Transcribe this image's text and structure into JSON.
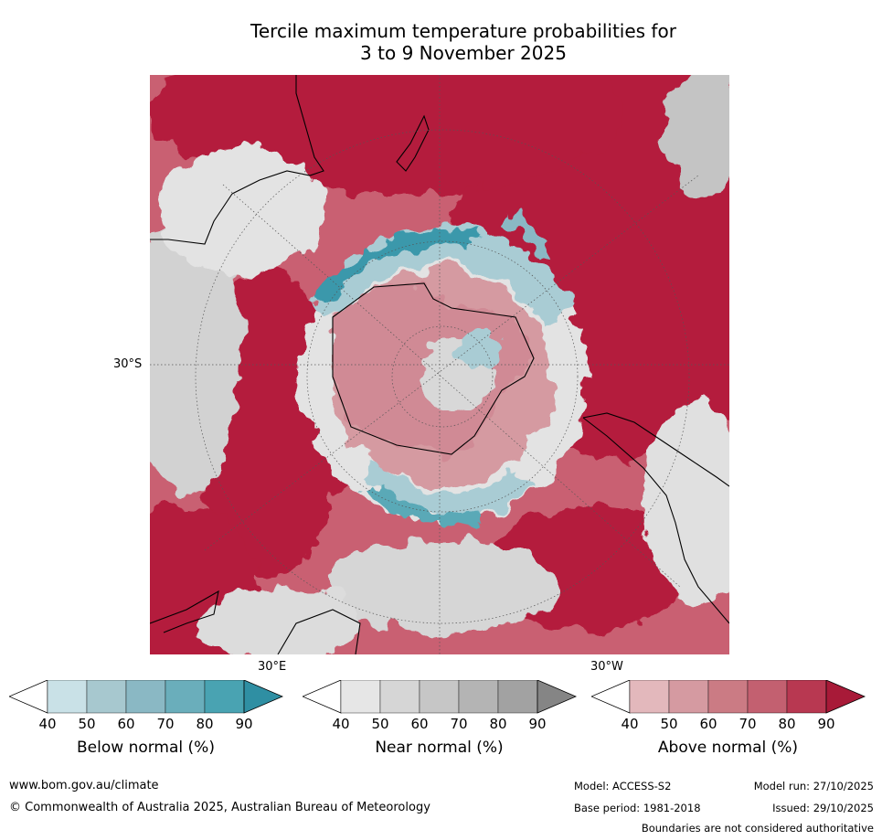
{
  "title": {
    "line1": "Tercile maximum temperature probabilities for",
    "line2": "3 to 9 November 2025"
  },
  "map": {
    "projection": "south-polar-stereographic",
    "lat_label": "30°S",
    "lon_labels": [
      "30°E",
      "30°W"
    ],
    "legend_icon": "south-pole-map"
  },
  "colorbars": [
    {
      "name": "below-normal",
      "label": "Below normal (%)",
      "ticks": [
        "40",
        "50",
        "60",
        "70",
        "80",
        "90"
      ],
      "under_color": "#ffffff",
      "colors": [
        "#c9e1e7",
        "#a7c8cf",
        "#8ab8c4",
        "#6aaebb",
        "#49a3b2"
      ],
      "over_color": "#2f8fa3"
    },
    {
      "name": "near-normal",
      "label": "Near normal (%)",
      "ticks": [
        "40",
        "50",
        "60",
        "70",
        "80",
        "90"
      ],
      "under_color": "#ffffff",
      "colors": [
        "#e6e6e6",
        "#d6d6d6",
        "#c6c6c6",
        "#b4b4b4",
        "#a2a2a2"
      ],
      "over_color": "#858585"
    },
    {
      "name": "above-normal",
      "label": "Above normal (%)",
      "ticks": [
        "40",
        "50",
        "60",
        "70",
        "80",
        "90"
      ],
      "under_color": "#ffffff",
      "colors": [
        "#e3b8bc",
        "#d59aa1",
        "#cb7b84",
        "#c36070",
        "#b83851"
      ],
      "over_color": "#a81a38"
    }
  ],
  "footer": {
    "url": "www.bom.gov.au/climate",
    "copyright": "© Commonwealth of Australia 2025, Australian Bureau of Meteorology",
    "model": "Model: ACCESS-S2",
    "model_run": "Model run: 27/10/2025",
    "base_period": "Base period: 1981-2018",
    "issued": "Issued: 29/10/2025",
    "disclaimer": "Boundaries are not considered authoritative"
  },
  "colors": {
    "above_dark": "#b41c3c",
    "above_mid": "#c96072",
    "above_light": "#dfa8b0",
    "near_light": "#e3e3e3",
    "near_mid": "#cfcfcf",
    "below_light": "#a9ccd4",
    "below_dark": "#3b98ab",
    "land_outline": "#000000"
  }
}
